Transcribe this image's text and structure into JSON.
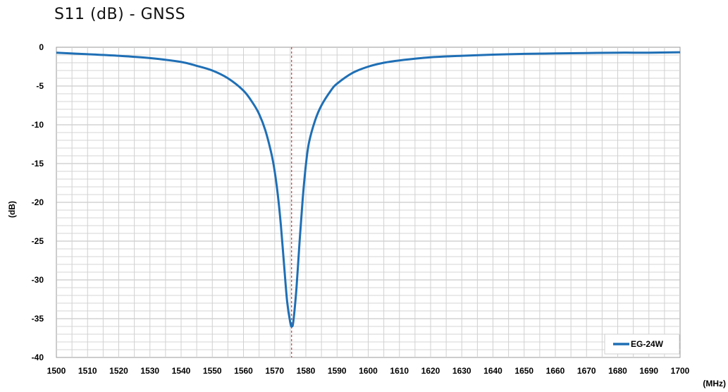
{
  "page": {
    "title": "S11 (dB) - GNSS"
  },
  "chart_data": {
    "type": "line",
    "title": "S11 (dB) - GNSS",
    "xlabel": "(MHz)",
    "ylabel": "(dB)",
    "xlim": [
      1500,
      1700
    ],
    "ylim": [
      -40,
      0
    ],
    "xticks": [
      1500,
      1510,
      1520,
      1530,
      1540,
      1550,
      1560,
      1570,
      1580,
      1590,
      1600,
      1610,
      1620,
      1630,
      1640,
      1650,
      1660,
      1670,
      1680,
      1690,
      1700
    ],
    "yticks": [
      0,
      -5,
      -10,
      -15,
      -20,
      -25,
      -30,
      -35,
      -40
    ],
    "grid": true,
    "legend_position": "bottom-right",
    "marker_line": {
      "x": 1575.42,
      "color": "#e03030",
      "style": "dashed"
    },
    "series": [
      {
        "name": "EG-24W",
        "color": "#1f6fb5",
        "x": [
          1500,
          1510,
          1520,
          1530,
          1540,
          1545,
          1550,
          1555,
          1560,
          1563,
          1565,
          1567,
          1569,
          1570,
          1571,
          1572,
          1573,
          1574,
          1575,
          1575.5,
          1576,
          1577,
          1578,
          1579,
          1580,
          1581,
          1583,
          1585,
          1588,
          1590,
          1595,
          1600,
          1605,
          1610,
          1620,
          1630,
          1640,
          1650,
          1660,
          1670,
          1680,
          1690,
          1700
        ],
        "y": [
          -0.7,
          -0.9,
          -1.1,
          -1.4,
          -1.9,
          -2.4,
          -3.0,
          -4.0,
          -5.6,
          -7.2,
          -8.6,
          -10.7,
          -13.8,
          -16.0,
          -19.0,
          -23.0,
          -28.0,
          -32.8,
          -35.5,
          -36.0,
          -35.3,
          -31.0,
          -25.0,
          -19.5,
          -15.2,
          -12.3,
          -9.4,
          -7.5,
          -5.6,
          -4.7,
          -3.3,
          -2.5,
          -2.0,
          -1.7,
          -1.3,
          -1.1,
          -0.95,
          -0.85,
          -0.8,
          -0.75,
          -0.7,
          -0.7,
          -0.65
        ]
      }
    ]
  }
}
